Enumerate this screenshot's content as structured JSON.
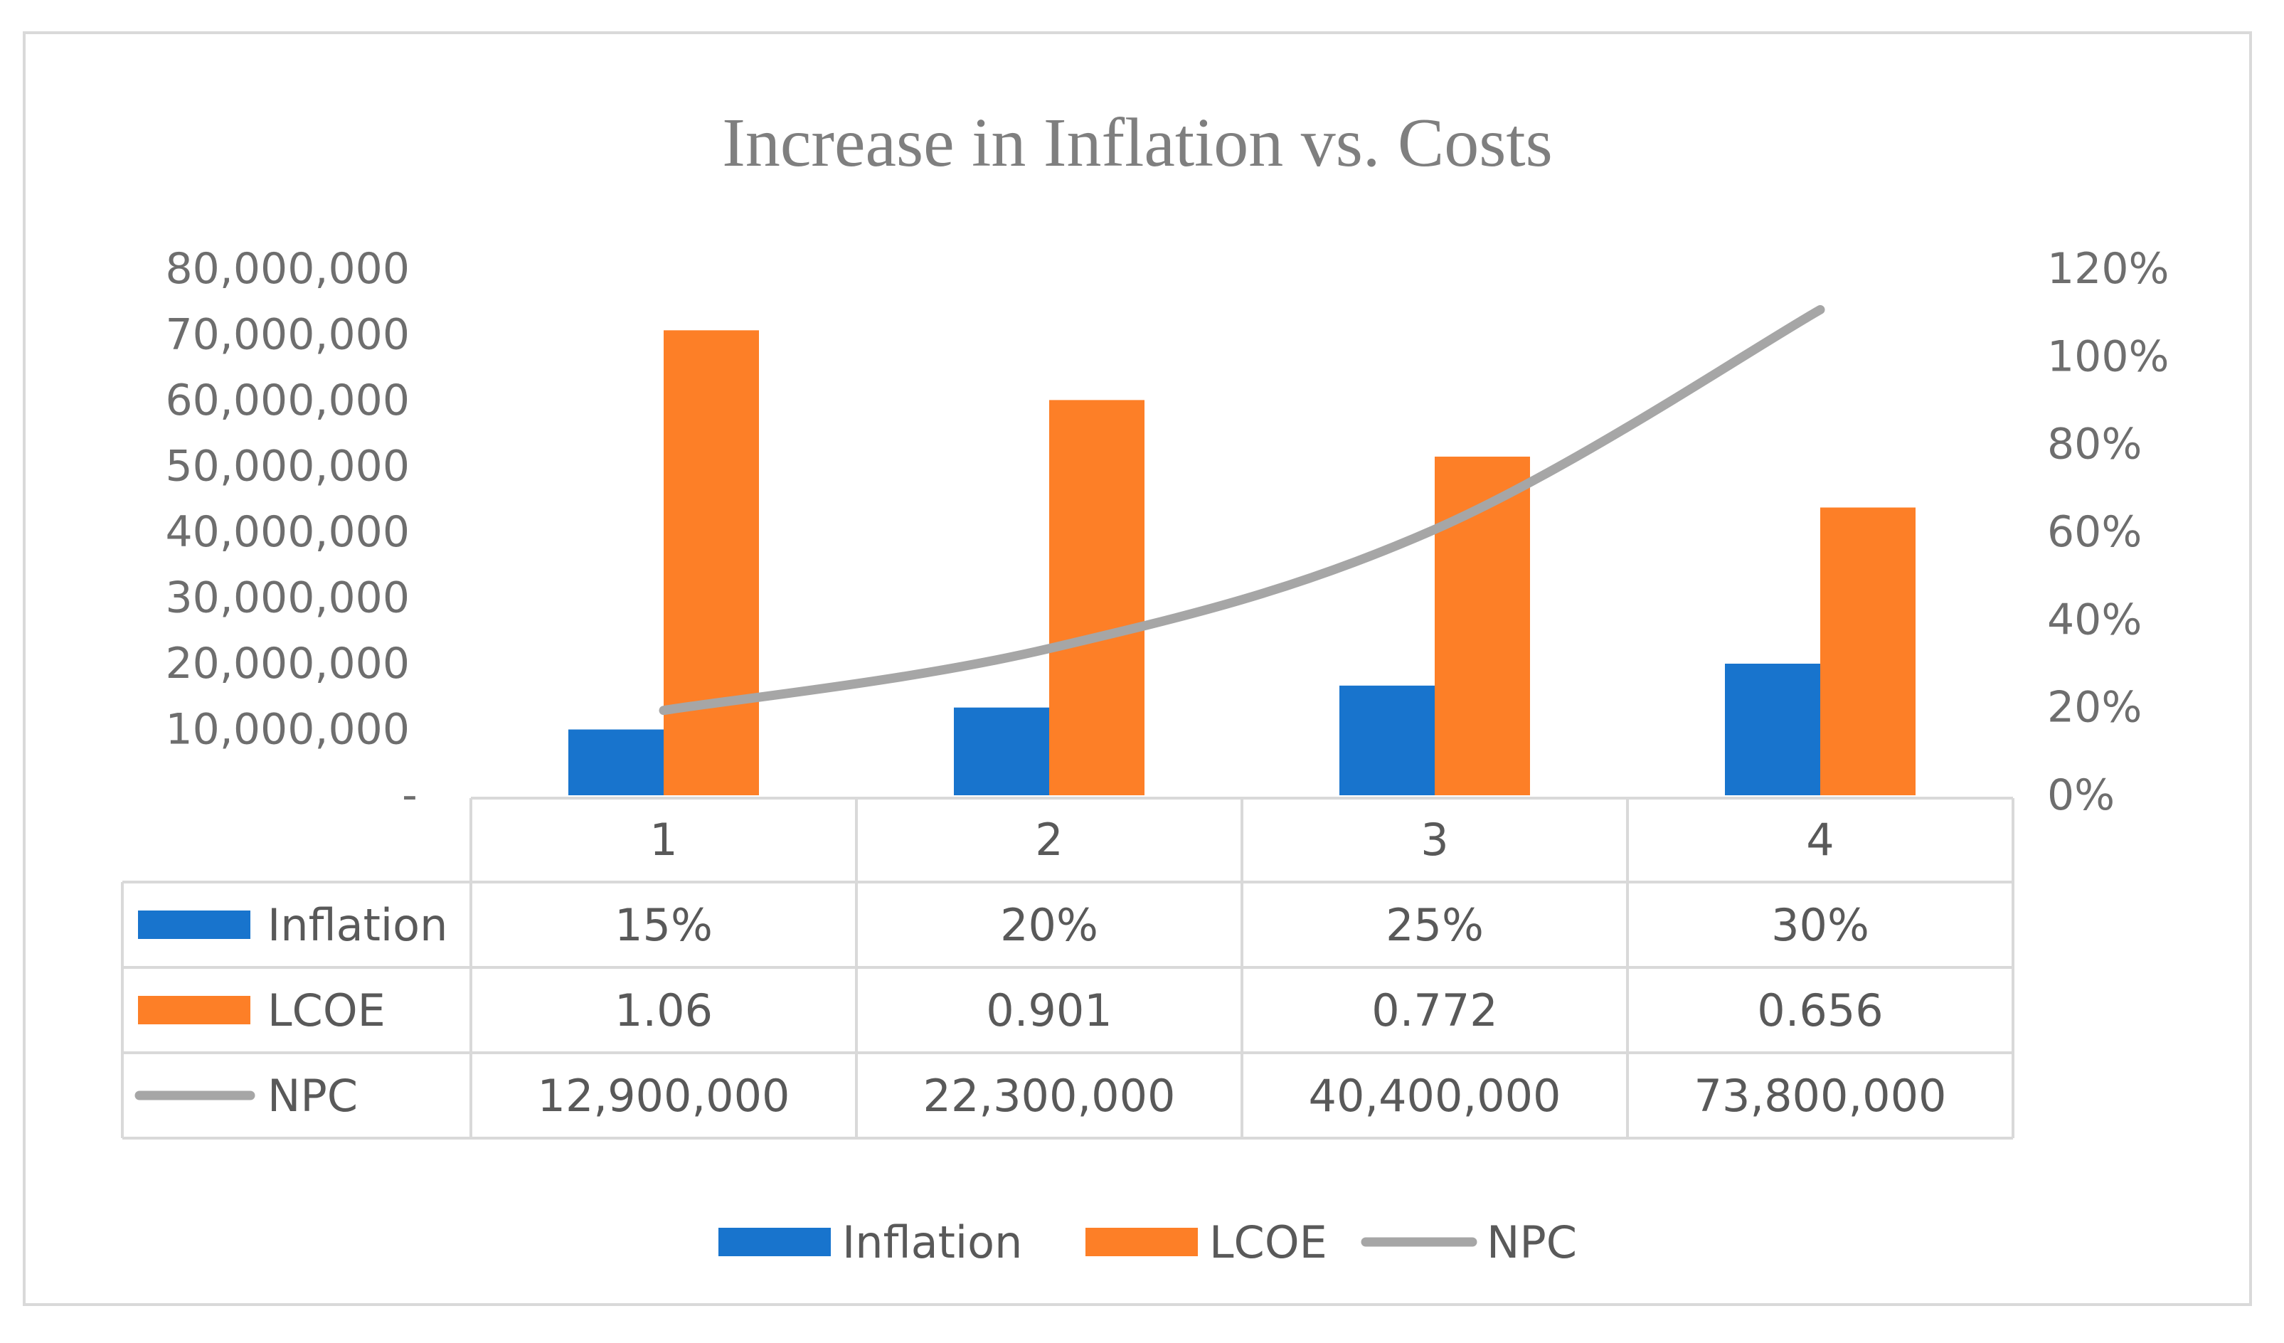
{
  "chart_data": {
    "type": "bar",
    "title": "Increase in Inflation vs. Costs",
    "categories": [
      "1",
      "2",
      "3",
      "4"
    ],
    "y_left": {
      "min": 0,
      "max": 80000000,
      "ticks": [
        0,
        10000000,
        20000000,
        30000000,
        40000000,
        50000000,
        60000000,
        70000000,
        80000000
      ],
      "tick_labels": [
        "-",
        "10,000,000",
        "20,000,000",
        "30,000,000",
        "40,000,000",
        "50,000,000",
        "60,000,000",
        "70,000,000",
        "80,000,000"
      ]
    },
    "y_right": {
      "min": 0,
      "max": 1.2,
      "ticks": [
        0,
        0.2,
        0.4,
        0.6,
        0.8,
        1.0,
        1.2
      ],
      "tick_labels": [
        "0%",
        "20%",
        "40%",
        "60%",
        "80%",
        "100%",
        "120%"
      ]
    },
    "series": [
      {
        "name": "Inflation",
        "type": "bar",
        "axis": "right",
        "color": "#1874cd",
        "values": [
          0.15,
          0.2,
          0.25,
          0.3
        ],
        "labels": [
          "15%",
          "20%",
          "25%",
          "30%"
        ]
      },
      {
        "name": "LCOE",
        "type": "bar",
        "axis": "right",
        "color": "#fd7f27",
        "values": [
          1.06,
          0.901,
          0.772,
          0.656
        ],
        "labels": [
          "1.06",
          "0.901",
          "0.772",
          "0.656"
        ]
      },
      {
        "name": "NPC",
        "type": "line",
        "axis": "left",
        "color": "#a6a6a6",
        "values": [
          12900000,
          22300000,
          40400000,
          73800000
        ],
        "labels": [
          "12,900,000",
          "22,300,000",
          "40,400,000",
          "73,800,000"
        ]
      }
    ],
    "legend": {
      "position": "bottom",
      "items": [
        "Inflation",
        "LCOE",
        "NPC"
      ]
    },
    "data_table": true
  }
}
